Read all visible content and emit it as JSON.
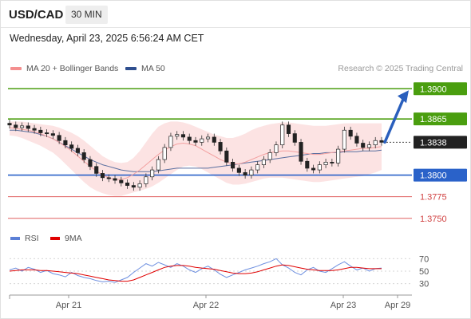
{
  "header": {
    "symbol": "USD/CAD",
    "timeframe": "30 MIN",
    "datetime": "Wednesday, April 23, 2025 6:56:24 AM CET"
  },
  "legend": {
    "ma20": {
      "label": "MA 20 + Bollinger Bands",
      "color": "#f48f8f"
    },
    "ma50": {
      "label": "MA 50",
      "color": "#2f4f8f"
    }
  },
  "credit": "Research © 2025 Trading Central",
  "rsi_legend": {
    "rsi": {
      "label": "RSI",
      "color": "#5b7fd6"
    },
    "ma9": {
      "label": "9MA",
      "color": "#e00000"
    }
  },
  "chart_data": [
    {
      "type": "line",
      "title": "",
      "x_tick_labels": [
        "Apr 21",
        "Apr 22",
        "Apr 23",
        "Apr 29"
      ],
      "ylim": [
        1.3735,
        1.3915
      ],
      "last_price": "1.3838",
      "levels": [
        {
          "label": "1.3900",
          "value": 1.39,
          "kind": "resistance",
          "color": "#4a9e0f",
          "boxed": true
        },
        {
          "label": "1.3865",
          "value": 1.3865,
          "kind": "resistance",
          "color": "#4a9e0f",
          "boxed": true
        },
        {
          "label": "1.3800",
          "value": 1.38,
          "kind": "pivot",
          "color": "#2a62c9",
          "boxed": true
        },
        {
          "label": "1.3775",
          "value": 1.3775,
          "kind": "support",
          "color": "#e06060",
          "boxed": false
        },
        {
          "label": "1.3750",
          "value": 1.375,
          "kind": "support",
          "color": "#e06060",
          "boxed": false
        }
      ],
      "price": [
        1.3858,
        1.3855,
        1.3857,
        1.3854,
        1.3852,
        1.3849,
        1.3848,
        1.3846,
        1.384,
        1.3835,
        1.3831,
        1.3826,
        1.3818,
        1.381,
        1.3802,
        1.3797,
        1.3796,
        1.3794,
        1.3791,
        1.3788,
        1.3786,
        1.379,
        1.3798,
        1.3806,
        1.3818,
        1.3832,
        1.3845,
        1.3847,
        1.3844,
        1.384,
        1.3838,
        1.3842,
        1.3844,
        1.3838,
        1.3828,
        1.3815,
        1.3808,
        1.3803,
        1.38,
        1.3806,
        1.3812,
        1.3818,
        1.3826,
        1.3835,
        1.3858,
        1.3848,
        1.3838,
        1.3816,
        1.3808,
        1.3806,
        1.3812,
        1.3815,
        1.3814,
        1.383,
        1.3852,
        1.3845,
        1.3837,
        1.3832,
        1.3835,
        1.384,
        1.3838
      ],
      "ma20": [
        1.3855,
        1.3854,
        1.3853,
        1.3852,
        1.385,
        1.3848,
        1.3845,
        1.3842,
        1.3838,
        1.3833,
        1.3828,
        1.3822,
        1.3816,
        1.381,
        1.3805,
        1.38,
        1.3797,
        1.3795,
        1.3795,
        1.3797,
        1.3801,
        1.3806,
        1.3812,
        1.3818,
        1.3824,
        1.3829,
        1.3833,
        1.3836,
        1.3837,
        1.3836,
        1.3834,
        1.383,
        1.3826,
        1.3822,
        1.3818,
        1.3815,
        1.3813,
        1.3813,
        1.3815,
        1.3818,
        1.3821,
        1.3824,
        1.3826,
        1.3827,
        1.3828,
        1.3828,
        1.3827,
        1.3826,
        1.3825,
        1.3824,
        1.3824,
        1.3825,
        1.3826,
        1.3827,
        1.3828,
        1.3829,
        1.383,
        1.3831,
        1.3831,
        1.3832,
        1.3833
      ],
      "ma50": [
        1.3852,
        1.3852,
        1.3851,
        1.385,
        1.3849,
        1.3847,
        1.3845,
        1.3842,
        1.3838,
        1.3834,
        1.383,
        1.3826,
        1.3822,
        1.3818,
        1.3815,
        1.3812,
        1.381,
        1.3808,
        1.3806,
        1.3805,
        1.3804,
        1.3804,
        1.3804,
        1.3804,
        1.3805,
        1.3806,
        1.3807,
        1.3808,
        1.3808,
        1.3808,
        1.3808,
        1.3808,
        1.3808,
        1.3809,
        1.381,
        1.3811,
        1.3812,
        1.3813,
        1.3814,
        1.3815,
        1.3816,
        1.3817,
        1.3818,
        1.3819,
        1.382,
        1.3821,
        1.3822,
        1.3823,
        1.3824,
        1.3825,
        1.3825,
        1.3826,
        1.3826,
        1.3826,
        1.3827,
        1.3827,
        1.3827,
        1.3828,
        1.3828,
        1.3828,
        1.3829
      ],
      "bb_upper": [
        1.3862,
        1.3862,
        1.3862,
        1.3861,
        1.386,
        1.3859,
        1.3858,
        1.3857,
        1.3855,
        1.3852,
        1.3849,
        1.3845,
        1.384,
        1.3834,
        1.3828,
        1.3822,
        1.3818,
        1.3815,
        1.3814,
        1.3815,
        1.382,
        1.3828,
        1.3838,
        1.3848,
        1.3856,
        1.386,
        1.3862,
        1.3862,
        1.3861,
        1.3859,
        1.3856,
        1.3853,
        1.385,
        1.3847,
        1.3845,
        1.3843,
        1.3843,
        1.3845,
        1.3848,
        1.3852,
        1.3855,
        1.3857,
        1.3859,
        1.386,
        1.3861,
        1.3861,
        1.386,
        1.3859,
        1.3858,
        1.3857,
        1.3857,
        1.3857,
        1.3858,
        1.3859,
        1.386,
        1.386,
        1.386,
        1.386,
        1.386,
        1.386,
        1.386
      ],
      "bb_lower": [
        1.3846,
        1.3845,
        1.3843,
        1.384,
        1.3837,
        1.3834,
        1.383,
        1.3826,
        1.382,
        1.3813,
        1.3806,
        1.3799,
        1.3792,
        1.3786,
        1.3782,
        1.3779,
        1.3777,
        1.3776,
        1.3776,
        1.3778,
        1.378,
        1.3782,
        1.3784,
        1.3787,
        1.3791,
        1.3796,
        1.3801,
        1.3806,
        1.381,
        1.3811,
        1.381,
        1.3807,
        1.3803,
        1.3799,
        1.3795,
        1.3791,
        1.3789,
        1.3789,
        1.379,
        1.3792,
        1.3794,
        1.3796,
        1.3797,
        1.3797,
        1.3797,
        1.3796,
        1.3795,
        1.3794,
        1.3793,
        1.3792,
        1.3792,
        1.3793,
        1.3794,
        1.3795,
        1.3796,
        1.3797,
        1.3798,
        1.3799,
        1.3801,
        1.3803,
        1.3806
      ],
      "forecast": {
        "from": 1.3838,
        "to": 1.39
      }
    },
    {
      "type": "line",
      "title": "",
      "y_tick_labels": [
        "70",
        "50",
        "30"
      ],
      "y_ticks": [
        70,
        50,
        30
      ],
      "ylim": [
        22,
        78
      ],
      "rsi": [
        52,
        55,
        50,
        56,
        53,
        48,
        51,
        46,
        44,
        41,
        48,
        43,
        40,
        38,
        35,
        33,
        34,
        32,
        36,
        40,
        48,
        55,
        62,
        58,
        64,
        60,
        56,
        62,
        58,
        52,
        48,
        54,
        58,
        52,
        45,
        40,
        44,
        48,
        52,
        55,
        58,
        62,
        65,
        70,
        60,
        55,
        48,
        44,
        52,
        56,
        50,
        48,
        54,
        60,
        65,
        58,
        52,
        55,
        50,
        54,
        55
      ],
      "ma9": [
        50,
        51,
        52,
        52,
        52,
        51,
        51,
        50,
        49,
        48,
        47,
        46,
        44,
        42,
        40,
        38,
        36,
        35,
        34,
        34,
        36,
        40,
        44,
        48,
        52,
        56,
        58,
        59,
        59,
        58,
        56,
        55,
        54,
        53,
        51,
        49,
        47,
        46,
        46,
        47,
        49,
        52,
        55,
        58,
        60,
        59,
        57,
        55,
        53,
        52,
        51,
        51,
        51,
        52,
        54,
        56,
        56,
        55,
        54,
        54,
        54
      ]
    }
  ]
}
